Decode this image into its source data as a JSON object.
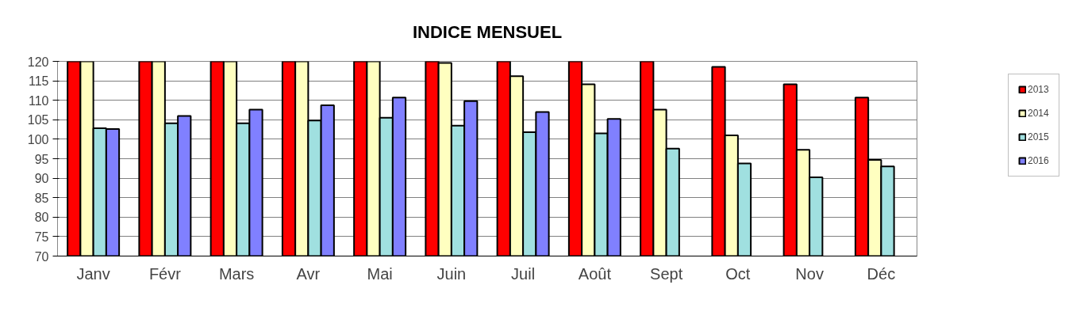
{
  "chart_data": {
    "type": "bar",
    "title": "INDICE MENSUEL",
    "categories": [
      "Janv",
      "Févr",
      "Mars",
      "Avr",
      "Mai",
      "Juin",
      "Juil",
      "Août",
      "Sept",
      "Oct",
      "Nov",
      "Déc"
    ],
    "series": [
      {
        "name": "2013",
        "color": "#ff0000",
        "values": [
          120,
          120,
          120,
          120,
          120,
          120,
          120,
          120,
          120,
          118.6,
          114.1,
          110.7
        ]
      },
      {
        "name": "2014",
        "color": "#ffffc0",
        "values": [
          120,
          120,
          120,
          120,
          120,
          119.6,
          116.2,
          114.1,
          107.6,
          101.0,
          97.3,
          94.7
        ]
      },
      {
        "name": "2015",
        "color": "#a0e0e0",
        "values": [
          102.8,
          104.1,
          104.1,
          104.8,
          105.5,
          103.5,
          101.8,
          101.5,
          97.6,
          93.8,
          90.2,
          93.0
        ]
      },
      {
        "name": "2016",
        "color": "#8080ff",
        "values": [
          102.6,
          106.0,
          107.6,
          108.7,
          110.7,
          109.8,
          107.0,
          105.2,
          null,
          null,
          null,
          null
        ]
      }
    ],
    "ylim": [
      70,
      120
    ],
    "yticks": [
      70,
      75,
      80,
      85,
      90,
      95,
      100,
      105,
      110,
      115,
      120
    ],
    "grid": "y",
    "legend": "top right"
  }
}
